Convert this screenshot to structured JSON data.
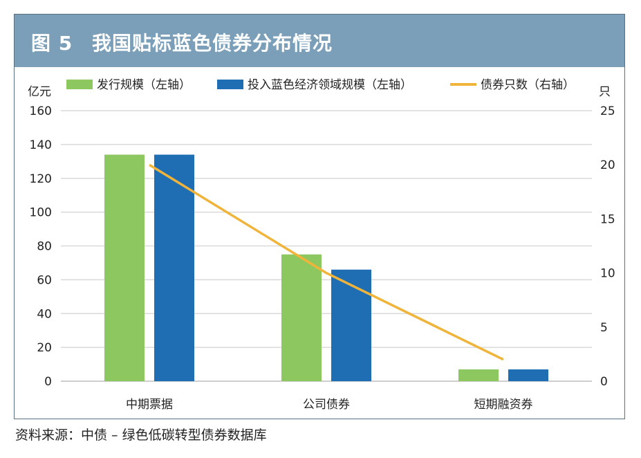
{
  "figure": {
    "label": "图 5",
    "title": "我国贴标蓝色债券分布情况"
  },
  "source": "资料来源：中债 – 绿色低碳转型债券数据库",
  "colors": {
    "header_bg": "#7b9fb9",
    "issuance": "#8dc760",
    "blue_investment": "#1f6db3",
    "count_line": "#f0b43a"
  },
  "chart_data": {
    "type": "bar",
    "categories": [
      "中期票据",
      "公司债券",
      "短期融资券"
    ],
    "series": [
      {
        "name": "发行规模（左轴）",
        "type": "bar",
        "axis": "left",
        "values": [
          134,
          75,
          7
        ]
      },
      {
        "name": "投入蓝色经济领域规模（左轴）",
        "type": "bar",
        "axis": "left",
        "values": [
          134,
          66,
          7
        ]
      },
      {
        "name": "债券只数（右轴）",
        "type": "line",
        "axis": "right",
        "values": [
          20,
          10,
          2
        ]
      }
    ],
    "ylabel_left": "亿元",
    "ylabel_right": "只",
    "ylim_left": [
      0,
      160
    ],
    "yticks_left": [
      "160",
      "140",
      "120",
      "100",
      "80",
      "60",
      "40",
      "20",
      "0"
    ],
    "ylim_right": [
      0,
      25
    ],
    "yticks_right": [
      "25",
      "20",
      "15",
      "10",
      "5",
      "0"
    ],
    "grid": true,
    "legend_position": "top"
  }
}
